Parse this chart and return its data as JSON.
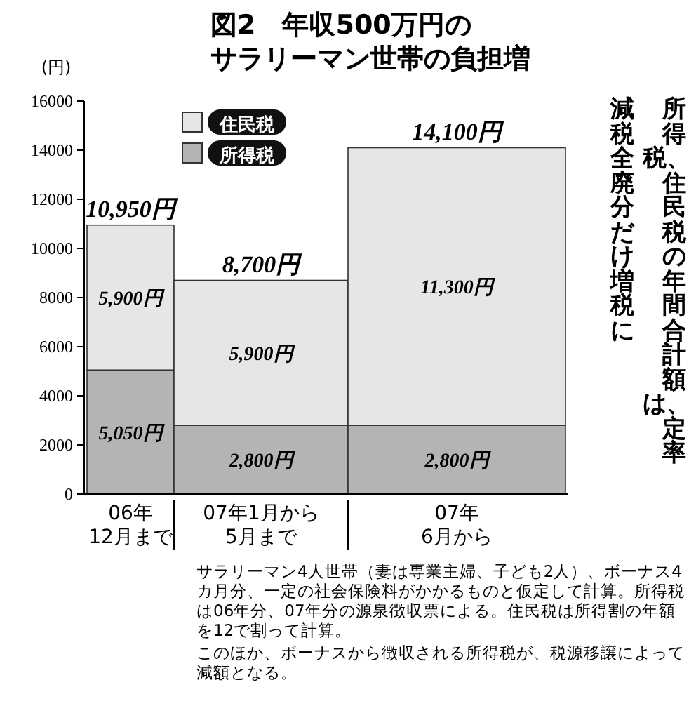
{
  "chart_data": {
    "type": "bar",
    "title": "図2　年収500万円の",
    "subtitle": "サラリーマン世帯の負担増",
    "ylabel": "(円)",
    "categories": [
      "06年\n12月まで",
      "07年1月から\n5月まで",
      "07年\n6月から"
    ],
    "stacked": true,
    "series": [
      {
        "name": "所得税",
        "color": "#b4b4b4",
        "values": [
          5050,
          2800,
          2800
        ],
        "value_labels": [
          "5,050円",
          "2,800円",
          "2,800円"
        ]
      },
      {
        "name": "住民税",
        "color": "#e6e6e6",
        "values": [
          5900,
          5900,
          11300
        ],
        "value_labels": [
          "5,900円",
          "5,900円",
          "11,300円"
        ]
      }
    ],
    "totals": [
      "10,950円",
      "8,700円",
      "14,100円"
    ],
    "ylim": [
      0,
      16000
    ],
    "yticks": [
      0,
      2000,
      4000,
      6000,
      8000,
      10000,
      12000,
      14000,
      16000
    ],
    "legend": "top",
    "annotations": [
      "所得税、住民税の年間合計額は、定率減税全廃分だけ増税に",
      "サラリーマン4人世帯（妻は専業主婦、子ども2人）、ボーナス4カ月分、一定の社会保険料がかかるものと仮定して計算。所得税は06年分、07年分の源泉徴収票による。住民税は所得割の年額を12で割って計算。",
      "このほか、ボーナスから徴収される所得税が、税源移譲によって減額となる。"
    ]
  }
}
